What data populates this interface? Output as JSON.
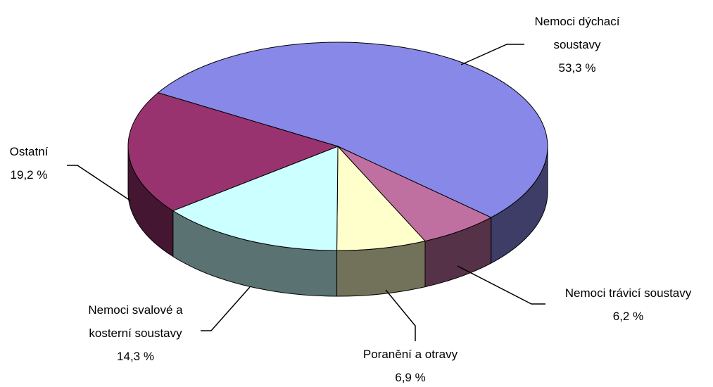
{
  "chart_data": {
    "type": "pie",
    "categories": [
      "Nemoci dýchací soustavy",
      "Nemoci trávicí soustavy",
      "Poranění a otravy",
      "Nemoci svalové a kosterní soustavy",
      "Ostatní"
    ],
    "values": [
      53.3,
      6.2,
      6.9,
      14.3,
      19.2
    ],
    "value_labels": [
      "53,3 %",
      "6,2 %",
      "6,9 %",
      "14,3 %",
      "19,2 %"
    ],
    "colors": [
      "#8888e8",
      "#c070a0",
      "#ffffcc",
      "#ccffff",
      "#993370"
    ]
  }
}
